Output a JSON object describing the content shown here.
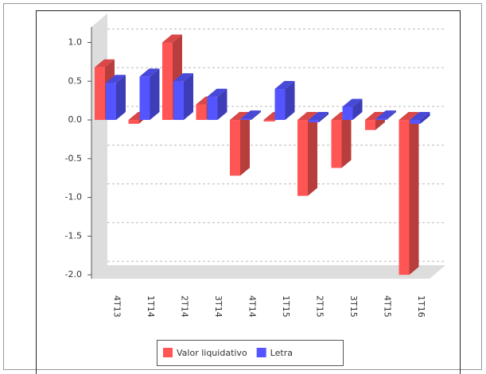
{
  "chart_data": {
    "type": "bar3d",
    "categories": [
      "4T13",
      "1T14",
      "2T14",
      "3T14",
      "4T14",
      "1T15",
      "2T15",
      "3T15",
      "4T15",
      "1T16"
    ],
    "series": [
      {
        "name": "Valor liquidativo",
        "color": "#ff5555",
        "values": [
          0.68,
          -0.05,
          1.0,
          0.2,
          -0.72,
          -0.02,
          -0.98,
          -0.62,
          -0.13,
          -2.0
        ]
      },
      {
        "name": "Letra",
        "color": "#5555ff",
        "values": [
          0.48,
          0.56,
          0.5,
          0.3,
          0.02,
          0.4,
          -0.03,
          0.17,
          0.02,
          -0.05
        ]
      }
    ],
    "ylim": [
      -2.05,
      1.2
    ],
    "yticks": [
      {
        "value": 1,
        "label": "1.0"
      },
      0.5,
      {
        "value": 0,
        "label": "0.0"
      },
      -0.5,
      {
        "value": -1,
        "label": "-1.0"
      },
      -1.5,
      {
        "value": -2,
        "label": "-2.0"
      }
    ],
    "grid": true,
    "legend": "bottom"
  }
}
